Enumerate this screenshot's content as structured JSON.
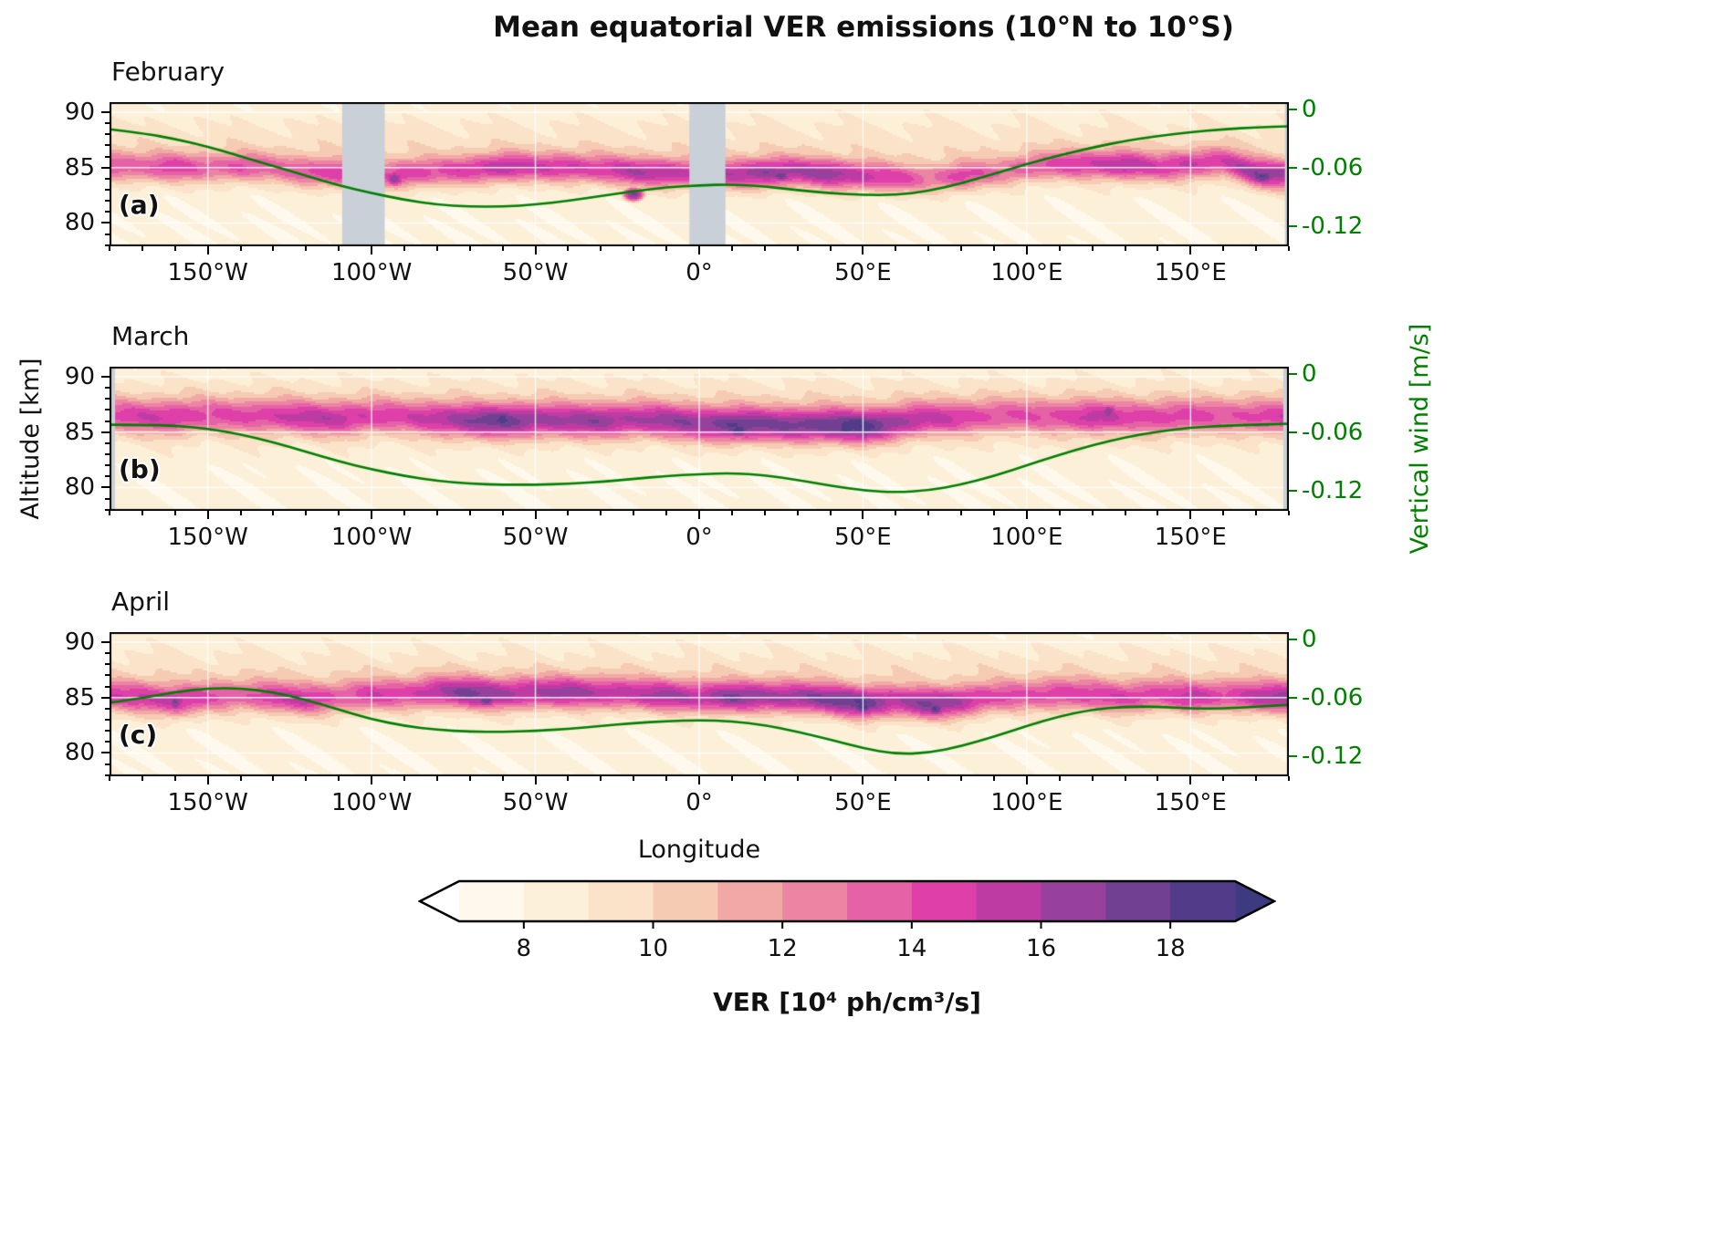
{
  "title": "Mean equatorial VER emissions (10°N to 10°S)",
  "wind_color": "#008000",
  "axes": {
    "x_label": "Longitude",
    "y_left_label": "Altitude [km]",
    "y_right_label": "Vertical wind [m/s]",
    "x_range": [
      -180,
      180
    ],
    "alt_range": [
      77.9,
      90.9
    ],
    "wind_range": [
      0.008,
      -0.141
    ],
    "x_ticks": [
      {
        "value": -150,
        "label": "150°W"
      },
      {
        "value": -100,
        "label": "100°W"
      },
      {
        "value": -50,
        "label": "50°W"
      },
      {
        "value": 0,
        "label": "0°"
      },
      {
        "value": 50,
        "label": "50°E"
      },
      {
        "value": 100,
        "label": "100°E"
      },
      {
        "value": 150,
        "label": "150°E"
      }
    ],
    "y_left_ticks": [
      {
        "value": 90,
        "label": "90"
      },
      {
        "value": 85,
        "label": "85"
      },
      {
        "value": 80,
        "label": "80"
      }
    ],
    "y_right_ticks": [
      {
        "value": 0,
        "label": "0"
      },
      {
        "value": -0.06,
        "label": "-0.06"
      },
      {
        "value": -0.12,
        "label": "-0.12"
      }
    ],
    "grid": true
  },
  "colorbar": {
    "label": "VER [10⁴ ph/cm³/s]",
    "ticks": [
      8,
      10,
      12,
      14,
      16,
      18
    ],
    "level_min": 7,
    "level_max": 19,
    "under_color": "#ffffff",
    "over_color": "#3d3b80",
    "colors": [
      "#fef9ec",
      "#fcf0d9",
      "#fae3c8",
      "#f6cbb4",
      "#f2a9a6",
      "#eb85a3",
      "#e562a6",
      "#de3fa9",
      "#bd3ba3",
      "#97419c",
      "#714093",
      "#523c89"
    ]
  },
  "chart_data": {
    "type": "heatmap",
    "x_unit": "degrees longitude",
    "y_unit": "km altitude",
    "value_unit": "10^4 ph/cm^3/s",
    "gap_color": "#c9d0d8",
    "longitudes": [
      -180,
      -170,
      -160,
      -150,
      -140,
      -130,
      -120,
      -110,
      -100,
      -90,
      -80,
      -70,
      -60,
      -50,
      -40,
      -30,
      -20,
      -10,
      0,
      10,
      20,
      30,
      40,
      50,
      60,
      70,
      80,
      90,
      100,
      110,
      120,
      130,
      140,
      150,
      160,
      170,
      180
    ],
    "panels": [
      {
        "id": "a",
        "month": "February",
        "corner_label": "(a)",
        "peak_width": 1.3,
        "upper_bg": 0.2,
        "peak_ver": [
          14.5,
          14.0,
          15.0,
          13.8,
          14.6,
          13.6,
          14.8,
          15.4,
          14.0,
          15.6,
          14.4,
          15.2,
          16.4,
          15.0,
          15.6,
          15.2,
          16.2,
          16.6,
          15.6,
          16.2,
          17.6,
          16.4,
          17.2,
          16.2,
          15.2,
          13.6,
          15.4,
          13.4,
          14.0,
          14.6,
          15.2,
          16.6,
          14.8,
          15.4,
          15.0,
          17.2,
          17.0
        ],
        "peak_alt": [
          85.2,
          85.0,
          85.0,
          85.0,
          85.0,
          85.0,
          84.6,
          84.4,
          84.3,
          84.4,
          84.6,
          84.8,
          85.0,
          85.0,
          85.0,
          84.8,
          84.6,
          84.5,
          84.4,
          84.4,
          84.5,
          84.6,
          84.4,
          84.2,
          84.0,
          84.0,
          84.2,
          84.5,
          85.0,
          85.2,
          85.3,
          85.2,
          85.0,
          85.3,
          85.5,
          84.5,
          84.3
        ],
        "spots": [
          {
            "lon": -20,
            "alt": 82.6,
            "ver": 17.5,
            "rlon": 5,
            "ralt": 1.0
          },
          {
            "lon": 25,
            "alt": 84.3,
            "ver": 18.0,
            "rlon": 6,
            "ralt": 1.0
          },
          {
            "lon": -93,
            "alt": 84.0,
            "ver": 17.0,
            "rlon": 5,
            "ralt": 1.2
          },
          {
            "lon": 172,
            "alt": 84.2,
            "ver": 18.2,
            "rlon": 8,
            "ralt": 1.2
          }
        ],
        "data_gaps": [
          [
            -109,
            -96
          ],
          [
            -3,
            8
          ],
          [
            178.8,
            180
          ]
        ],
        "wind": [
          -0.02,
          -0.024,
          -0.03,
          -0.038,
          -0.048,
          -0.058,
          -0.068,
          -0.078,
          -0.086,
          -0.093,
          -0.098,
          -0.1,
          -0.1,
          -0.098,
          -0.094,
          -0.089,
          -0.084,
          -0.08,
          -0.078,
          -0.077,
          -0.079,
          -0.083,
          -0.086,
          -0.088,
          -0.088,
          -0.084,
          -0.076,
          -0.066,
          -0.056,
          -0.047,
          -0.039,
          -0.032,
          -0.027,
          -0.023,
          -0.02,
          -0.018,
          -0.017
        ]
      },
      {
        "id": "b",
        "month": "March",
        "corner_label": "(b)",
        "peak_width": 1.5,
        "upper_bg": 0.6,
        "peak_ver": [
          13.8,
          14.6,
          15.2,
          13.8,
          14.2,
          14.8,
          15.2,
          15.6,
          14.6,
          14.2,
          15.8,
          17.0,
          17.6,
          16.6,
          16.2,
          16.6,
          16.0,
          16.4,
          16.8,
          18.2,
          17.0,
          17.6,
          18.0,
          18.6,
          16.6,
          15.2,
          14.6,
          14.0,
          13.6,
          14.2,
          15.6,
          14.2,
          14.6,
          14.2,
          13.6,
          14.4,
          14.6
        ],
        "peak_alt": [
          86.5,
          86.4,
          86.3,
          86.5,
          86.5,
          86.4,
          86.3,
          86.2,
          86.4,
          86.4,
          86.2,
          86.0,
          86.0,
          86.1,
          86.0,
          86.0,
          86.1,
          86.0,
          85.8,
          85.6,
          85.7,
          85.6,
          85.6,
          85.5,
          85.8,
          86.2,
          86.3,
          86.4,
          86.5,
          86.4,
          86.3,
          86.4,
          86.3,
          86.4,
          86.5,
          86.4,
          86.3
        ],
        "spots": [
          {
            "lon": 12,
            "alt": 85.2,
            "ver": 19.0,
            "rlon": 7,
            "ralt": 1.1
          },
          {
            "lon": 45,
            "alt": 85.3,
            "ver": 19.0,
            "rlon": 8,
            "ralt": 1.2
          },
          {
            "lon": -60,
            "alt": 86.3,
            "ver": 18.2,
            "rlon": 10,
            "ralt": 1.2
          },
          {
            "lon": 125,
            "alt": 86.8,
            "ver": 17.0,
            "rlon": 5,
            "ralt": 1.2
          }
        ],
        "data_gaps": [
          [
            -180,
            -178.3
          ],
          [
            178.3,
            180
          ]
        ],
        "wind": [
          -0.052,
          -0.052,
          -0.053,
          -0.056,
          -0.062,
          -0.07,
          -0.08,
          -0.09,
          -0.098,
          -0.105,
          -0.11,
          -0.113,
          -0.114,
          -0.114,
          -0.113,
          -0.111,
          -0.108,
          -0.105,
          -0.103,
          -0.102,
          -0.104,
          -0.109,
          -0.115,
          -0.12,
          -0.122,
          -0.12,
          -0.114,
          -0.105,
          -0.094,
          -0.083,
          -0.073,
          -0.065,
          -0.059,
          -0.055,
          -0.053,
          -0.052,
          -0.051
        ]
      },
      {
        "id": "c",
        "month": "April",
        "corner_label": "(c)",
        "peak_width": 1.4,
        "upper_bg": 0.3,
        "peak_ver": [
          14.6,
          15.6,
          16.2,
          14.4,
          14.0,
          15.4,
          15.6,
          14.2,
          15.0,
          14.6,
          16.2,
          17.4,
          16.6,
          16.2,
          16.6,
          16.0,
          15.6,
          16.6,
          16.2,
          17.4,
          16.6,
          17.2,
          17.6,
          18.6,
          16.2,
          17.6,
          16.6,
          14.6,
          14.2,
          15.2,
          14.6,
          15.2,
          14.6,
          15.6,
          14.6,
          16.2,
          16.6
        ],
        "peak_alt": [
          85.2,
          85.0,
          84.6,
          85.0,
          85.2,
          85.0,
          84.8,
          85.0,
          85.2,
          85.3,
          85.5,
          85.4,
          85.3,
          85.4,
          85.5,
          85.4,
          85.3,
          85.2,
          85.0,
          85.0,
          85.1,
          85.0,
          84.8,
          84.5,
          84.6,
          84.4,
          84.6,
          85.0,
          85.2,
          85.3,
          85.2,
          85.0,
          85.2,
          85.0,
          85.2,
          85.0,
          85.0
        ],
        "spots": [
          {
            "lon": 50,
            "alt": 84.2,
            "ver": 19.0,
            "rlon": 6,
            "ralt": 1.2
          },
          {
            "lon": 72,
            "alt": 84.0,
            "ver": 18.4,
            "rlon": 5,
            "ralt": 1.1
          },
          {
            "lon": -160,
            "alt": 84.6,
            "ver": 17.2,
            "rlon": 4,
            "ralt": 1.5
          },
          {
            "lon": 10,
            "alt": 85.0,
            "ver": 18.2,
            "rlon": 5,
            "ralt": 1.0
          },
          {
            "lon": -65,
            "alt": 84.8,
            "ver": 18.0,
            "rlon": 6,
            "ralt": 1.1
          }
        ],
        "data_gaps": [],
        "wind": [
          -0.065,
          -0.06,
          -0.054,
          -0.05,
          -0.05,
          -0.054,
          -0.062,
          -0.072,
          -0.082,
          -0.089,
          -0.093,
          -0.095,
          -0.095,
          -0.094,
          -0.092,
          -0.089,
          -0.086,
          -0.084,
          -0.083,
          -0.084,
          -0.088,
          -0.095,
          -0.103,
          -0.112,
          -0.118,
          -0.117,
          -0.11,
          -0.1,
          -0.089,
          -0.079,
          -0.072,
          -0.069,
          -0.069,
          -0.071,
          -0.071,
          -0.069,
          -0.067
        ]
      }
    ]
  }
}
